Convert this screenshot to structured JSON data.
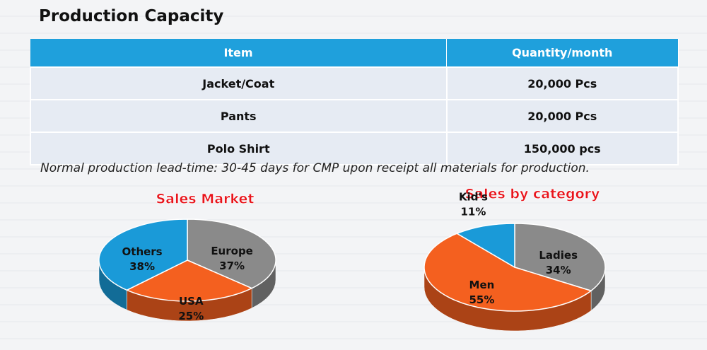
{
  "title": "Production Capacity",
  "table": {
    "header": [
      "Item",
      "Quantity/month"
    ],
    "rows": [
      [
        "Jacket/Coat",
        "20,000 Pcs"
      ],
      [
        "Pants",
        "20,000 Pcs"
      ],
      [
        "Polo Shirt",
        "150,000 pcs"
      ]
    ]
  },
  "note": "Normal production lead-time:  30-45 days for CMP upon receipt all materials for production.",
  "chart_data": [
    {
      "type": "pie",
      "title": "Sales Market",
      "categories": [
        "Europe",
        "USA",
        "Others"
      ],
      "values": [
        37,
        25,
        38
      ],
      "value_labels": [
        "37%",
        "25%",
        "38%"
      ],
      "colors": [
        "#8a8a8a",
        "#f4601f",
        "#1a9ad8"
      ]
    },
    {
      "type": "pie",
      "title": "Sales by category",
      "categories": [
        "Ladies",
        "Men",
        "Kid's"
      ],
      "values": [
        34,
        55,
        11
      ],
      "value_labels": [
        "34%",
        "55%",
        "11%"
      ],
      "colors": [
        "#8a8a8a",
        "#f4601f",
        "#1a9ad8"
      ]
    }
  ]
}
